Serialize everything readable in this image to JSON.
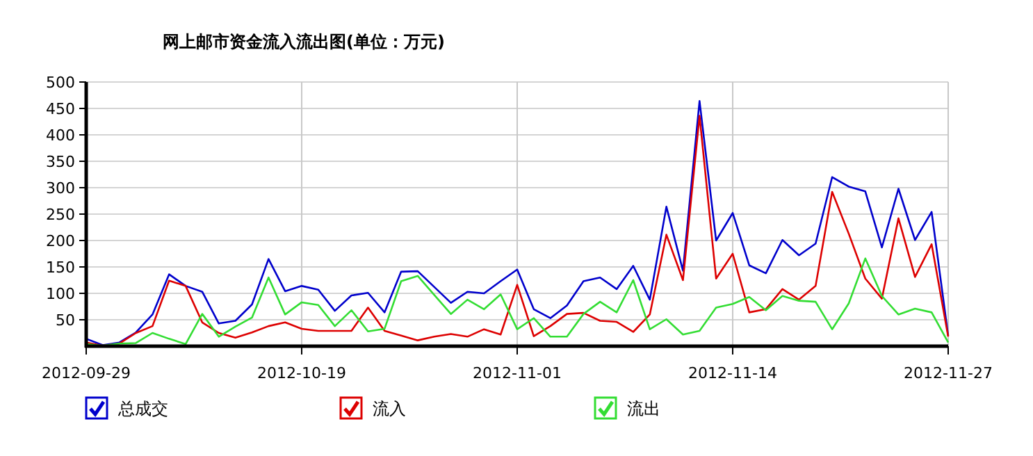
{
  "chart_data": {
    "type": "line",
    "title": "网上邮市资金流入流出图(单位：万元)",
    "categories": [
      "2012-09-29",
      null,
      null,
      null,
      null,
      null,
      null,
      null,
      null,
      null,
      null,
      null,
      null,
      "2012-10-19",
      null,
      null,
      null,
      null,
      null,
      null,
      null,
      null,
      null,
      null,
      null,
      null,
      "2012-11-01",
      null,
      null,
      null,
      null,
      null,
      null,
      null,
      null,
      null,
      null,
      null,
      null,
      "2012-11-14",
      null,
      null,
      null,
      null,
      null,
      null,
      null,
      null,
      null,
      null,
      null,
      null,
      "2012-11-27"
    ],
    "series": [
      {
        "name": "总成交",
        "color": "#0000cc",
        "values": [
          14,
          2,
          7,
          26,
          60,
          136,
          114,
          103,
          43,
          48,
          79,
          165,
          104,
          114,
          107,
          67,
          96,
          101,
          64,
          141,
          142,
          112,
          82,
          103,
          100,
          123,
          145,
          70,
          53,
          77,
          123,
          130,
          108,
          152,
          88,
          264,
          143,
          464,
          200,
          252,
          153,
          138,
          201,
          172,
          194,
          320,
          302,
          293,
          187,
          298,
          201,
          254,
          20
        ]
      },
      {
        "name": "流入",
        "color": "#dd0000",
        "values": [
          7,
          1,
          5,
          25,
          38,
          124,
          114,
          45,
          25,
          16,
          26,
          38,
          45,
          33,
          29,
          29,
          29,
          73,
          29,
          20,
          11,
          18,
          23,
          18,
          32,
          22,
          116,
          19,
          38,
          61,
          63,
          48,
          46,
          27,
          60,
          211,
          125,
          436,
          128,
          175,
          64,
          70,
          108,
          88,
          114,
          292,
          213,
          128,
          90,
          242,
          131,
          193,
          18
        ]
      },
      {
        "name": "流出",
        "color": "#33dd33",
        "values": [
          4,
          1,
          5,
          6,
          25,
          14,
          4,
          61,
          18,
          37,
          54,
          130,
          60,
          83,
          78,
          38,
          68,
          28,
          33,
          123,
          133,
          97,
          61,
          88,
          70,
          98,
          32,
          53,
          18,
          18,
          61,
          84,
          64,
          125,
          32,
          51,
          22,
          29,
          73,
          80,
          93,
          68,
          95,
          86,
          84,
          32,
          81,
          166,
          95,
          60,
          71,
          64,
          7
        ]
      }
    ],
    "ylim": [
      0,
      500
    ],
    "yticks": [
      50,
      100,
      150,
      200,
      250,
      300,
      350,
      400,
      450,
      500
    ],
    "grid": true,
    "legend": "bottom",
    "marker": "none",
    "line_style": "solid"
  }
}
